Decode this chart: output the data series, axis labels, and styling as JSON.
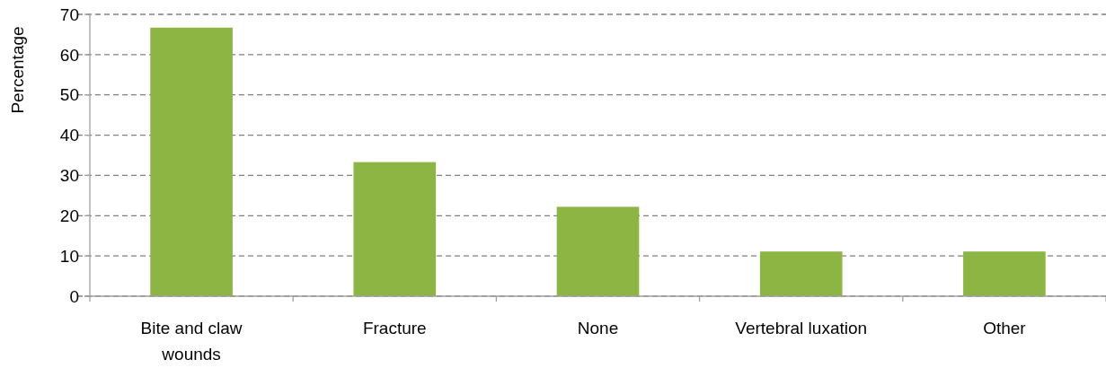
{
  "chart_data": {
    "type": "bar",
    "ylabel": "Percentage",
    "categories": [
      "Bite and claw wounds",
      "Fracture",
      "None",
      "Vertebral luxation",
      "Other"
    ],
    "values": [
      66.7,
      33.3,
      22.2,
      11.1,
      11.1
    ],
    "color": "#8cb544",
    "ylim": [
      0,
      70
    ],
    "yticks": [
      0,
      10,
      20,
      30,
      40,
      50,
      60,
      70
    ],
    "grid": "y"
  }
}
